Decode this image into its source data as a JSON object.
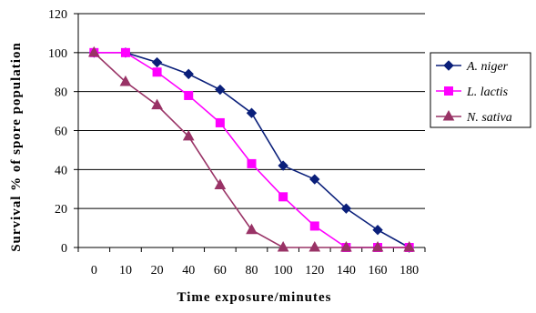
{
  "chart_data": {
    "type": "line",
    "title": "",
    "xlabel": "Time exposure/minutes",
    "ylabel": "Survival % of spore population",
    "categories": [
      "0",
      "10",
      "20",
      "40",
      "60",
      "80",
      "100",
      "120",
      "140",
      "160",
      "180"
    ],
    "ylim": [
      0,
      120
    ],
    "yticks": [
      0,
      20,
      40,
      60,
      80,
      100,
      120
    ],
    "grid": "horizontal",
    "legend_position": "right",
    "series": [
      {
        "name": "A. niger",
        "color": "#0a1f7a",
        "marker": "diamond",
        "values": [
          100,
          100,
          95,
          89,
          81,
          69,
          42,
          35,
          20,
          9,
          0
        ]
      },
      {
        "name": "L. lactis",
        "color": "#ff00ff",
        "marker": "square",
        "values": [
          100,
          100,
          90,
          78,
          64,
          43,
          26,
          11,
          0,
          0,
          0
        ]
      },
      {
        "name": "N. sativa",
        "color": "#993366",
        "marker": "triangle",
        "values": [
          100,
          85,
          73,
          57,
          32,
          9,
          0,
          0,
          0,
          0,
          0
        ]
      }
    ]
  }
}
